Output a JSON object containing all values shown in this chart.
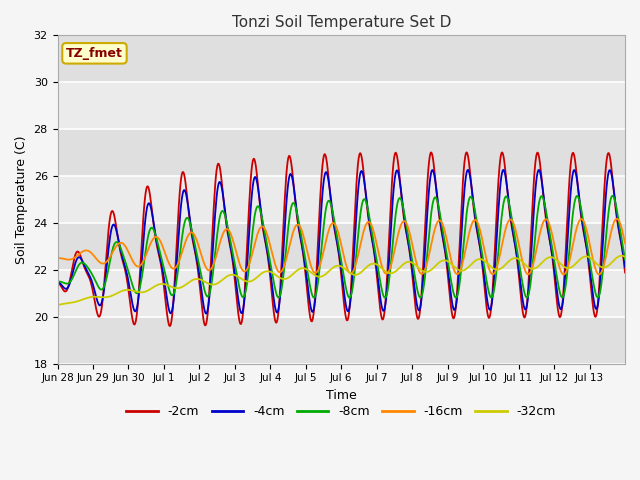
{
  "title": "Tonzi Soil Temperature Set D",
  "xlabel": "Time",
  "ylabel": "Soil Temperature (C)",
  "ylim": [
    18,
    32
  ],
  "yticks": [
    18,
    20,
    22,
    24,
    26,
    28,
    30,
    32
  ],
  "plot_bg": "#ebebeb",
  "fig_bg": "#f5f5f5",
  "annotation_text": "TZ_fmet",
  "annotation_bg": "#ffffcc",
  "annotation_border": "#ccaa00",
  "line_colors": [
    "#cc0000",
    "#0000cc",
    "#00aa00",
    "#ff8800",
    "#cccc00"
  ],
  "line_labels": [
    "-2cm",
    "-4cm",
    "-8cm",
    "-16cm",
    "-32cm"
  ],
  "xtick_labels": [
    "Jun 28",
    "Jun 29",
    "Jun 30",
    "Jul 1",
    "Jul 2",
    "Jul 3",
    "Jul 4",
    "Jul 5",
    "Jul 6",
    "Jul 7",
    "Jul 8",
    "Jul 9",
    "Jul 10",
    "Jul 11",
    "Jul 12",
    "Jul 13"
  ],
  "num_days": 16
}
